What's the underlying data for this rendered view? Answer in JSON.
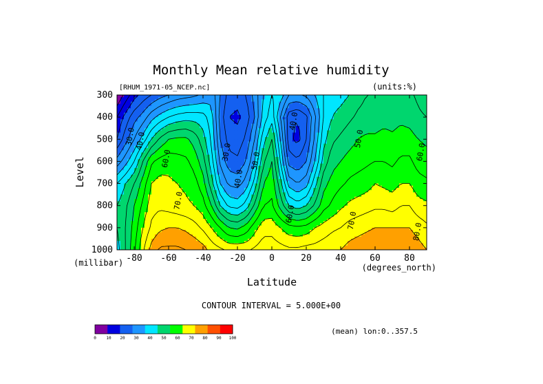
{
  "title": "Monthly Mean relative humidity",
  "dataset": "[RHUM_1971-05_NCEP.nc]",
  "units": "(units:%)",
  "footer": {
    "contour_interval": "CONTOUR INTERVAL = 5.000E+00",
    "mean_note": "(mean) lon:0..357.5"
  },
  "chart_data": {
    "type": "heatmap",
    "title": "Monthly Mean relative humidity",
    "xlabel": "Latitude",
    "xunit": "(degrees_north)",
    "ylabel": "Level",
    "yunit": "(millibar)",
    "xlim": [
      -90,
      90
    ],
    "ylim": [
      1000,
      300
    ],
    "x_ticks": [
      -80,
      -60,
      -40,
      -20,
      0,
      20,
      40,
      60,
      80
    ],
    "x_tick_labels": [
      "-80",
      "-60",
      "-40",
      "-20",
      "0",
      "20",
      "40",
      "60",
      "80"
    ],
    "y_ticks": [
      300,
      400,
      500,
      600,
      700,
      800,
      900,
      1000
    ],
    "y_tick_labels": [
      "300",
      "400",
      "500",
      "600",
      "700",
      "800",
      "900",
      "1000"
    ],
    "contour_interval": 5,
    "x": [
      -90,
      -85,
      -80,
      -75,
      -70,
      -65,
      -60,
      -55,
      -50,
      -45,
      -40,
      -35,
      -30,
      -25,
      -20,
      -15,
      -10,
      -5,
      0,
      5,
      10,
      15,
      20,
      25,
      30,
      35,
      40,
      45,
      50,
      55,
      60,
      65,
      70,
      75,
      80,
      85,
      90
    ],
    "levels": [
      300,
      400,
      500,
      600,
      700,
      800,
      900,
      1000
    ],
    "values": [
      [
        5,
        12,
        18,
        22,
        25,
        28,
        30,
        32,
        33,
        34,
        36,
        38,
        30,
        23,
        22,
        25,
        32,
        40,
        45,
        43,
        35,
        34,
        36,
        40,
        45,
        47,
        48,
        50,
        53,
        55,
        55,
        56,
        56,
        57,
        56,
        54,
        52
      ],
      [
        15,
        22,
        28,
        32,
        38,
        42,
        45,
        47,
        48,
        48,
        47,
        42,
        28,
        20,
        19,
        22,
        30,
        42,
        48,
        35,
        22,
        20,
        24,
        34,
        45,
        50,
        52,
        54,
        56,
        57,
        57,
        58,
        58,
        59,
        58,
        56,
        55
      ],
      [
        20,
        28,
        35,
        42,
        50,
        56,
        60,
        61,
        61,
        58,
        52,
        44,
        30,
        23,
        22,
        26,
        35,
        48,
        55,
        40,
        22,
        18,
        25,
        36,
        48,
        54,
        56,
        58,
        60,
        61,
        61,
        62,
        61,
        62,
        62,
        60,
        59
      ],
      [
        32,
        38,
        45,
        55,
        64,
        67,
        68,
        67,
        66,
        63,
        57,
        47,
        34,
        27,
        26,
        30,
        40,
        54,
        60,
        45,
        28,
        26,
        30,
        40,
        52,
        58,
        60,
        62,
        63,
        64,
        65,
        65,
        64,
        66,
        66,
        63,
        62
      ],
      [
        45,
        50,
        55,
        62,
        70,
        72,
        71,
        70,
        69,
        67,
        62,
        52,
        40,
        34,
        33,
        37,
        47,
        60,
        63,
        52,
        38,
        35,
        38,
        48,
        58,
        62,
        64,
        66,
        67,
        68,
        70,
        69,
        68,
        70,
        70,
        67,
        66
      ],
      [
        50,
        54,
        60,
        66,
        73,
        74,
        73,
        72,
        71,
        70,
        67,
        60,
        50,
        44,
        43,
        47,
        56,
        65,
        66,
        58,
        50,
        47,
        50,
        56,
        63,
        66,
        69,
        71,
        72,
        73,
        74,
        74,
        73,
        75,
        75,
        72,
        71
      ],
      [
        50,
        55,
        62,
        70,
        76,
        79,
        80,
        80,
        79,
        77,
        74,
        70,
        65,
        60,
        59,
        62,
        68,
        73,
        73,
        70,
        67,
        66,
        67,
        70,
        72,
        74,
        75,
        77,
        78,
        79,
        80,
        80,
        80,
        80,
        80,
        78,
        76
      ],
      [
        48,
        55,
        64,
        74,
        82,
        86,
        86,
        86,
        85,
        84,
        82,
        78,
        76,
        74,
        74,
        74,
        76,
        78,
        78,
        77,
        76,
        76,
        77,
        77,
        78,
        79,
        80,
        82,
        83,
        84,
        85,
        85,
        84,
        84,
        84,
        82,
        80
      ]
    ],
    "contour_labels": [
      {
        "text": "30.0",
        "x": -81,
        "y": 490
      },
      {
        "text": "40.0",
        "x": -75,
        "y": 510
      },
      {
        "text": "60.0",
        "x": -60,
        "y": 590
      },
      {
        "text": "70.0",
        "x": -53,
        "y": 780
      },
      {
        "text": "30.0",
        "x": -25,
        "y": 560
      },
      {
        "text": "40.0",
        "x": -18,
        "y": 680
      },
      {
        "text": "50.0",
        "x": -8,
        "y": 600
      },
      {
        "text": "40.0",
        "x": 14,
        "y": 420
      },
      {
        "text": "60.0",
        "x": 12,
        "y": 840
      },
      {
        "text": "50.0",
        "x": 52,
        "y": 500
      },
      {
        "text": "70.0",
        "x": 48,
        "y": 870
      },
      {
        "text": "60.0",
        "x": 88,
        "y": 560
      },
      {
        "text": "80.0",
        "x": 86,
        "y": 920
      }
    ],
    "colorbar": {
      "bounds": [
        0,
        10,
        20,
        30,
        40,
        50,
        60,
        70,
        80,
        90,
        100
      ],
      "labels": [
        "0",
        "10",
        "20",
        "30",
        "40",
        "50",
        "60",
        "70",
        "80",
        "90",
        "100"
      ],
      "colors": [
        "#8000a0",
        "#0000e0",
        "#1460f0",
        "#1e96ff",
        "#00e6ff",
        "#00d66e",
        "#00ff00",
        "#ffff00",
        "#ffa000",
        "#ff5000",
        "#ff0000"
      ]
    }
  }
}
